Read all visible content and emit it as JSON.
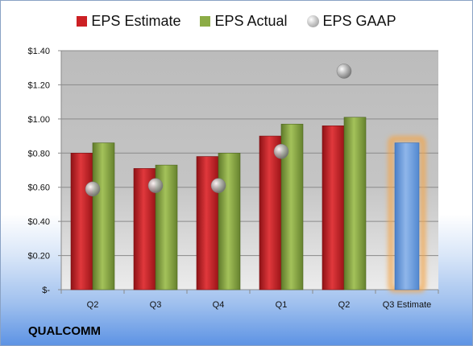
{
  "legend": {
    "estimate": "EPS Estimate",
    "actual": "EPS Actual",
    "gaap": "EPS GAAP"
  },
  "company": "QUALCOMM",
  "colors": {
    "estimate": "#cc2024",
    "actual": "#8cac46",
    "gaap": "#a8a8a8",
    "forecast": "#6f9fdc",
    "forecast_glow": "#f3a64a"
  },
  "chart_data": {
    "type": "bar",
    "categories": [
      "Q2",
      "Q3",
      "Q4",
      "Q1",
      "Q2",
      "Q3 Estimate"
    ],
    "series": [
      {
        "name": "EPS Estimate",
        "values": [
          0.8,
          0.71,
          0.78,
          0.9,
          0.96,
          null
        ]
      },
      {
        "name": "EPS Actual",
        "values": [
          0.86,
          0.73,
          0.8,
          0.97,
          1.01,
          null
        ]
      },
      {
        "name": "EPS GAAP",
        "values": [
          0.59,
          0.61,
          0.61,
          0.81,
          1.28,
          null
        ]
      }
    ],
    "forecast": {
      "category": "Q3 Estimate",
      "value": 0.86
    },
    "ylim": [
      0,
      1.4
    ],
    "yticks": [
      0,
      0.2,
      0.4,
      0.6,
      0.8,
      1.0,
      1.2,
      1.4
    ],
    "ytick_labels": [
      "$-",
      "$0.20",
      "$0.40",
      "$0.60",
      "$0.80",
      "$1.00",
      "$1.20",
      "$1.40"
    ],
    "grid": true
  }
}
